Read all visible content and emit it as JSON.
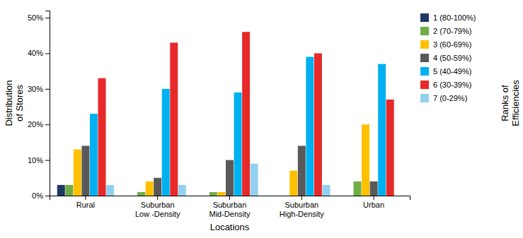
{
  "chart_data": {
    "type": "bar",
    "categories": [
      "Rural",
      "Suburban\nLow -Density",
      "Suburban\nMid-Density",
      "Suburban\nHigh-Density",
      "Urban"
    ],
    "series": [
      {
        "name": "1 (80-100%)",
        "color": "#1f3864",
        "values": [
          3,
          0,
          0,
          0,
          0
        ]
      },
      {
        "name": "2 (70-79%)",
        "color": "#70ad47",
        "values": [
          3,
          1,
          1,
          0,
          4
        ]
      },
      {
        "name": "3 (60-69%)",
        "color": "#ffc000",
        "values": [
          13,
          4,
          1,
          7,
          20
        ]
      },
      {
        "name": "4 (50-59%)",
        "color": "#595959",
        "values": [
          14,
          5,
          10,
          14,
          4
        ]
      },
      {
        "name": "5 (40-49%)",
        "color": "#00b0f0",
        "values": [
          23,
          30,
          29,
          39,
          37
        ]
      },
      {
        "name": "6 (30-39%)",
        "color": "#e8292a",
        "values": [
          33,
          43,
          46,
          40,
          27
        ]
      },
      {
        "name": "7 (0-29%)",
        "color": "#92d0f0",
        "values": [
          3,
          3,
          9,
          3,
          0
        ]
      }
    ],
    "xlabel": "Locations",
    "ylabel": "Distribution\nof Stores",
    "annotations": [
      "Ranks of\nEfficiencies"
    ],
    "ylim": [
      0,
      52
    ],
    "yticks": [
      {
        "value": 0,
        "label": "0%"
      },
      {
        "value": 10,
        "label": "10%"
      },
      {
        "value": 20,
        "label": "20%"
      },
      {
        "value": 30,
        "label": "30%"
      },
      {
        "value": 40,
        "label": "40%"
      },
      {
        "value": 50,
        "label": "50%"
      }
    ],
    "grid": false,
    "legend": "right"
  }
}
